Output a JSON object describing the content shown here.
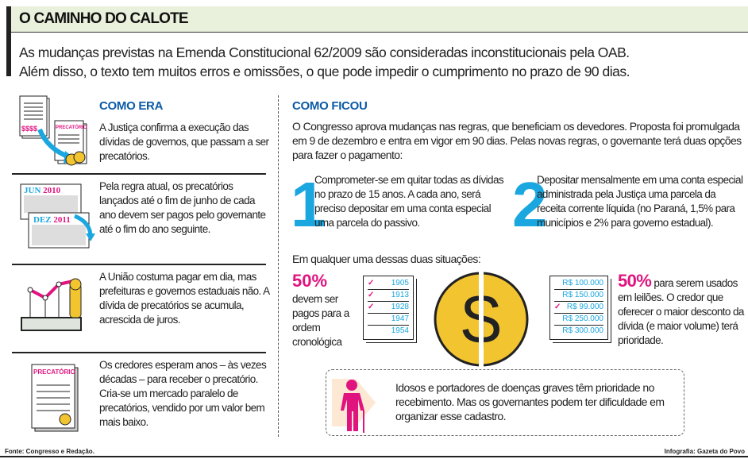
{
  "header": {
    "title": "O CAMINHO DO CALOTE"
  },
  "intro": [
    "As mudanças previstas na Emenda Constitucional 62/2009 são consideradas inconstitucionais pela OAB.",
    "Além disso, o texto tem muitos erros e omissões, o que pode impedir o cumprimento no prazo de 90 dias."
  ],
  "como_era": {
    "title": "COMO ERA",
    "items": [
      {
        "text": "A Justiça confirma a execução das dívidas de governos, que passam a ser precatórios.",
        "icon_labels": [
          "$$$$",
          "PRECATÓRIO"
        ]
      },
      {
        "text": "Pela regra atual, os precatórios lançados até o fim de junho de cada ano devem ser pagos pelo governante até o fim do ano seguinte.",
        "icon_labels": [
          "JUN",
          "2010",
          "DEZ",
          "2011"
        ]
      },
      {
        "text": "A União costuma pagar em dia, mas prefeituras e governos estaduais não.  A dívida de precatórios se acumula, acrescida de juros."
      },
      {
        "text": "Os credores esperam anos – às vezes décadas – para receber o precatório. Cria-se um mercado paralelo de precatórios, vendido por um valor bem mais baixo.",
        "icon_labels": [
          "PRECATÓRIO"
        ]
      }
    ]
  },
  "como_ficou": {
    "title": "COMO FICOU",
    "text": "O Congresso aprova mudanças nas regras, que beneficiam os devedores. Proposta foi promulgada em 9 de dezembro e entra em vigor em 90 dias. Pelas novas regras, o governante terá duas opções para fazer o pagamento:",
    "options": [
      {
        "num": "1",
        "text": "Comprometer-se em quitar todas as dívidas no prazo de 15 anos. A cada ano, será preciso depositar em uma conta especial uma parcela do passivo."
      },
      {
        "num": "2",
        "text": "Depositar mensalmente em uma conta especial administrada pela Justiça uma parcela da receita corrente líquida  (no Paraná, 1,5% para municípios e 2% para governo estadual)."
      }
    ],
    "either": "Em qualquer uma dessas duas situações:",
    "left": {
      "pct": "50%",
      "text": "devem ser pagos para a ordem cronológica",
      "list": [
        {
          "v": "1905",
          "checked": true
        },
        {
          "v": "1913",
          "checked": true
        },
        {
          "v": "1928",
          "checked": true
        },
        {
          "v": "1947",
          "checked": false
        },
        {
          "v": "1954",
          "checked": false
        }
      ]
    },
    "right": {
      "pct": "50%",
      "text": " para serem usados em leilões. O credor que oferecer o maior desconto da dívida (e maior volume) terá prioridade.",
      "list": [
        {
          "v": "R$ 100.000",
          "checked": false
        },
        {
          "v": "R$ 150.000",
          "checked": false
        },
        {
          "v": "R$ 99.000",
          "checked": true
        },
        {
          "v": "R$ 250.000",
          "checked": false
        },
        {
          "v": "R$ 300.000",
          "checked": false
        }
      ]
    },
    "note": "Idosos e portadores de doenças graves têm prioridade no recebimento. Mas os governantes podem ter dificuldade em organizar esse cadastro."
  },
  "footer": {
    "source": "Fonte: Congresso e Redação.",
    "credit": "Infografia: Gazeta do Povo"
  },
  "colors": {
    "blue": "#0b5aa6",
    "cyan": "#1aa7e0",
    "magenta": "#e0147f",
    "gold": "#f2c530"
  }
}
